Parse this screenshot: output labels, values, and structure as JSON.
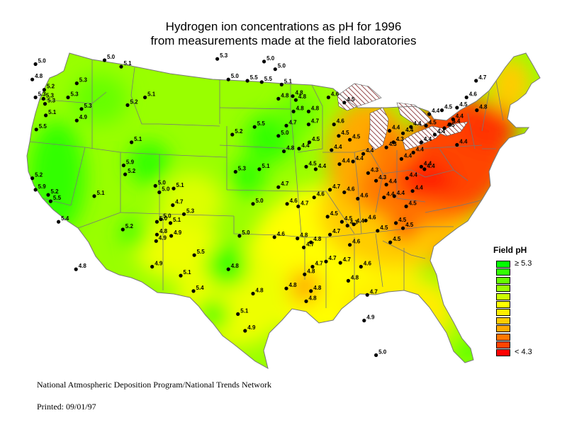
{
  "title": {
    "line1": "Hydrogen ion concentrations as pH for 1996",
    "line2": "from measurements made at the field laboratories"
  },
  "legend": {
    "title": "Field pH",
    "items": [
      {
        "color": "#00ff00",
        "label": "≥ 5.3"
      },
      {
        "color": "#33ff00",
        "label": ""
      },
      {
        "color": "#66ff00",
        "label": ""
      },
      {
        "color": "#99ff00",
        "label": ""
      },
      {
        "color": "#ccff00",
        "label": ""
      },
      {
        "color": "#ffff00",
        "label": ""
      },
      {
        "color": "#ffee00",
        "label": ""
      },
      {
        "color": "#ffcc00",
        "label": ""
      },
      {
        "color": "#ffaa00",
        "label": ""
      },
      {
        "color": "#ff7700",
        "label": ""
      },
      {
        "color": "#ff4400",
        "label": ""
      },
      {
        "color": "#ff0000",
        "label": "< 4.3"
      }
    ]
  },
  "credit": "National Atmospheric Deposition Program/National Trends Network",
  "printed": "Printed: 09/01/97",
  "sites": [
    {
      "lon": -123.6,
      "lat": 48.2,
      "ph": "5.0"
    },
    {
      "lon": -124.0,
      "lat": 47.0,
      "ph": "4.8"
    },
    {
      "lon": -122.5,
      "lat": 46.2,
      "ph": "5.2"
    },
    {
      "lon": -123.6,
      "lat": 45.6,
      "ph": "5.3"
    },
    {
      "lon": -122.6,
      "lat": 45.5,
      "ph": "5.3"
    },
    {
      "lon": -122.4,
      "lat": 45.1,
      "ph": "5.3"
    },
    {
      "lon": -122.3,
      "lat": 44.2,
      "ph": "5.1"
    },
    {
      "lon": -123.5,
      "lat": 43.1,
      "ph": "5.5"
    },
    {
      "lon": -118.4,
      "lat": 46.7,
      "ph": "5.3"
    },
    {
      "lon": -119.5,
      "lat": 45.6,
      "ph": "5.3"
    },
    {
      "lon": -117.8,
      "lat": 44.7,
      "ph": "5.3"
    },
    {
      "lon": -118.4,
      "lat": 43.8,
      "ph": "4.9"
    },
    {
      "lon": -114.9,
      "lat": 48.5,
      "ph": "5.0"
    },
    {
      "lon": -112.8,
      "lat": 48.0,
      "ph": "5.1"
    },
    {
      "lon": -112.0,
      "lat": 45.0,
      "ph": "5.2"
    },
    {
      "lon": -109.8,
      "lat": 45.6,
      "ph": "5.1"
    },
    {
      "lon": -111.5,
      "lat": 42.1,
      "ph": "5.1"
    },
    {
      "lon": -112.5,
      "lat": 40.3,
      "ph": "5.9"
    },
    {
      "lon": -112.3,
      "lat": 39.6,
      "ph": "5.2"
    },
    {
      "lon": -124.0,
      "lat": 39.3,
      "ph": "5.2"
    },
    {
      "lon": -123.6,
      "lat": 38.4,
      "ph": "5.9"
    },
    {
      "lon": -122.0,
      "lat": 38.0,
      "ph": "5.2"
    },
    {
      "lon": -121.7,
      "lat": 37.5,
      "ph": "5.5"
    },
    {
      "lon": -120.7,
      "lat": 35.9,
      "ph": "5.4"
    },
    {
      "lon": -116.2,
      "lat": 37.9,
      "ph": "5.1"
    },
    {
      "lon": -112.6,
      "lat": 35.3,
      "ph": "5.2"
    },
    {
      "lon": -118.5,
      "lat": 32.2,
      "ph": "4.8"
    },
    {
      "lon": -108.5,
      "lat": 38.7,
      "ph": "5.0"
    },
    {
      "lon": -106.2,
      "lat": 38.5,
      "ph": "5.1"
    },
    {
      "lon": -108.0,
      "lat": 38.2,
      "ph": "5.0"
    },
    {
      "lon": -106.3,
      "lat": 37.2,
      "ph": "4.7"
    },
    {
      "lon": -104.9,
      "lat": 36.5,
      "ph": "5.3"
    },
    {
      "lon": -107.8,
      "lat": 36.1,
      "ph": "5.0"
    },
    {
      "lon": -108.3,
      "lat": 35.9,
      "ph": "5.0"
    },
    {
      "lon": -106.6,
      "lat": 35.8,
      "ph": "5.1"
    },
    {
      "lon": -108.3,
      "lat": 34.9,
      "ph": "4.8"
    },
    {
      "lon": -106.5,
      "lat": 34.8,
      "ph": "4.9"
    },
    {
      "lon": -108.4,
      "lat": 34.4,
      "ph": "4.9"
    },
    {
      "lon": -108.9,
      "lat": 32.4,
      "ph": "4.9"
    },
    {
      "lon": -103.6,
      "lat": 33.3,
      "ph": "5.5"
    },
    {
      "lon": -105.3,
      "lat": 31.7,
      "ph": "5.1"
    },
    {
      "lon": -103.7,
      "lat": 30.5,
      "ph": "5.4"
    },
    {
      "lon": -100.7,
      "lat": 48.6,
      "ph": "5.3"
    },
    {
      "lon": -99.3,
      "lat": 47.0,
      "ph": "5.0"
    },
    {
      "lon": -96.9,
      "lat": 46.9,
      "ph": "5.5"
    },
    {
      "lon": -95.1,
      "lat": 46.8,
      "ph": "5.5"
    },
    {
      "lon": -98.8,
      "lat": 42.7,
      "ph": "5.2"
    },
    {
      "lon": -96.0,
      "lat": 43.3,
      "ph": "5.5"
    },
    {
      "lon": -98.4,
      "lat": 39.8,
      "ph": "5.3"
    },
    {
      "lon": -95.4,
      "lat": 40.0,
      "ph": "5.1"
    },
    {
      "lon": -96.2,
      "lat": 37.3,
      "ph": "5.0"
    },
    {
      "lon": -97.9,
      "lat": 34.8,
      "ph": "5.0"
    },
    {
      "lon": -99.3,
      "lat": 32.2,
      "ph": "4.8"
    },
    {
      "lon": -96.2,
      "lat": 30.3,
      "ph": "4.8"
    },
    {
      "lon": -98.1,
      "lat": 28.7,
      "ph": "5.1"
    },
    {
      "lon": -97.2,
      "lat": 27.4,
      "ph": "4.9"
    },
    {
      "lon": -94.8,
      "lat": 48.4,
      "ph": "5.0"
    },
    {
      "lon": -93.4,
      "lat": 47.8,
      "ph": "5.0"
    },
    {
      "lon": -92.6,
      "lat": 46.6,
      "ph": "5.1"
    },
    {
      "lon": -93.0,
      "lat": 45.5,
      "ph": "4.8"
    },
    {
      "lon": -91.2,
      "lat": 45.7,
      "ph": "4.8"
    },
    {
      "lon": -90.8,
      "lat": 45.4,
      "ph": "4.8"
    },
    {
      "lon": -91.1,
      "lat": 44.5,
      "ph": "4.8"
    },
    {
      "lon": -92.0,
      "lat": 43.4,
      "ph": "4.7"
    },
    {
      "lon": -93.0,
      "lat": 42.6,
      "ph": "5.0"
    },
    {
      "lon": -92.3,
      "lat": 41.4,
      "ph": "4.8"
    },
    {
      "lon": -93.0,
      "lat": 38.6,
      "ph": "4.7"
    },
    {
      "lon": -91.9,
      "lat": 37.3,
      "ph": "4.6"
    },
    {
      "lon": -90.5,
      "lat": 37.1,
      "ph": "4.7"
    },
    {
      "lon": -93.5,
      "lat": 34.7,
      "ph": "4.6"
    },
    {
      "lon": -90.6,
      "lat": 34.6,
      "ph": "4.8"
    },
    {
      "lon": -89.8,
      "lat": 33.9,
      "ph": "4.7"
    },
    {
      "lon": -88.9,
      "lat": 34.3,
      "ph": "4.8"
    },
    {
      "lon": -88.7,
      "lat": 32.4,
      "ph": "4.7"
    },
    {
      "lon": -89.7,
      "lat": 31.8,
      "ph": "4.8"
    },
    {
      "lon": -92.0,
      "lat": 30.7,
      "ph": "4.8"
    },
    {
      "lon": -88.9,
      "lat": 30.5,
      "ph": "4.8"
    },
    {
      "lon": -89.5,
      "lat": 29.7,
      "ph": "4.8"
    },
    {
      "lon": -87.0,
      "lat": 32.8,
      "ph": "4.7"
    },
    {
      "lon": -86.5,
      "lat": 34.9,
      "ph": "4.7"
    },
    {
      "lon": -85.2,
      "lat": 32.7,
      "ph": "4.7"
    },
    {
      "lon": -84.0,
      "lat": 34.1,
      "ph": "4.6"
    },
    {
      "lon": -82.6,
      "lat": 32.4,
      "ph": "4.6"
    },
    {
      "lon": -84.2,
      "lat": 31.3,
      "ph": "4.8"
    },
    {
      "lon": -81.8,
      "lat": 30.2,
      "ph": "4.7"
    },
    {
      "lon": -82.2,
      "lat": 28.2,
      "ph": "4.9"
    },
    {
      "lon": -80.7,
      "lat": 25.5,
      "ph": "5.0"
    },
    {
      "lon": -80.5,
      "lat": 35.2,
      "ph": "4.5"
    },
    {
      "lon": -82.0,
      "lat": 36.0,
      "ph": "4.6"
    },
    {
      "lon": -78.2,
      "lat": 35.8,
      "ph": "4.5"
    },
    {
      "lon": -77.3,
      "lat": 35.4,
      "ph": "4.5"
    },
    {
      "lon": -78.9,
      "lat": 34.3,
      "ph": "4.5"
    },
    {
      "lon": -84.3,
      "lat": 35.6,
      "ph": "4.3"
    },
    {
      "lon": -83.5,
      "lat": 35.7,
      "ph": "4.4"
    },
    {
      "lon": -85.0,
      "lat": 35.9,
      "ph": "4.5"
    },
    {
      "lon": -86.8,
      "lat": 36.3,
      "ph": "4.5"
    },
    {
      "lon": -88.5,
      "lat": 37.8,
      "ph": "4.6"
    },
    {
      "lon": -86.5,
      "lat": 38.4,
      "ph": "4.7"
    },
    {
      "lon": -84.7,
      "lat": 38.2,
      "ph": "4.6"
    },
    {
      "lon": -83.0,
      "lat": 37.7,
      "ph": "4.6"
    },
    {
      "lon": -89.5,
      "lat": 40.2,
      "ph": "4.5"
    },
    {
      "lon": -88.3,
      "lat": 40.0,
      "ph": "4.4"
    },
    {
      "lon": -90.4,
      "lat": 41.6,
      "ph": "4.4"
    },
    {
      "lon": -89.1,
      "lat": 42.1,
      "ph": "4.5"
    },
    {
      "lon": -89.2,
      "lat": 43.5,
      "ph": "4.7"
    },
    {
      "lon": -89.2,
      "lat": 44.5,
      "ph": "4.8"
    },
    {
      "lon": -86.7,
      "lat": 45.6,
      "ph": "4.6"
    },
    {
      "lon": -84.7,
      "lat": 45.2,
      "ph": "4.5"
    },
    {
      "lon": -86.0,
      "lat": 43.5,
      "ph": "4.6"
    },
    {
      "lon": -85.4,
      "lat": 42.6,
      "ph": "4.5"
    },
    {
      "lon": -84.0,
      "lat": 42.3,
      "ph": "4.5"
    },
    {
      "lon": -86.3,
      "lat": 41.5,
      "ph": "4.4"
    },
    {
      "lon": -85.3,
      "lat": 40.4,
      "ph": "4.4"
    },
    {
      "lon": -83.6,
      "lat": 40.6,
      "ph": "4.4"
    },
    {
      "lon": -82.3,
      "lat": 41.2,
      "ph": "4.4"
    },
    {
      "lon": -81.7,
      "lat": 39.7,
      "ph": "4.3"
    },
    {
      "lon": -80.7,
      "lat": 39.1,
      "ph": "4.3"
    },
    {
      "lon": -79.7,
      "lat": 37.8,
      "ph": "4.4"
    },
    {
      "lon": -78.4,
      "lat": 37.9,
      "ph": "4.4"
    },
    {
      "lon": -79.4,
      "lat": 38.8,
      "ph": "4.4"
    },
    {
      "lon": -76.9,
      "lat": 37.1,
      "ph": "4.5"
    },
    {
      "lon": -76.1,
      "lat": 38.3,
      "ph": "4.4"
    },
    {
      "lon": -76.8,
      "lat": 39.3,
      "ph": "4.4"
    },
    {
      "lon": -79.4,
      "lat": 41.7,
      "ph": "4.3"
    },
    {
      "lon": -78.5,
      "lat": 42.1,
      "ph": "4.3"
    },
    {
      "lon": -77.5,
      "lat": 40.8,
      "ph": "4.4"
    },
    {
      "lon": -76.0,
      "lat": 41.3,
      "ph": "4.4"
    },
    {
      "lon": -75.0,
      "lat": 40.2,
      "ph": "4.4"
    },
    {
      "lon": -74.6,
      "lat": 40.0,
      "ph": "4.4"
    },
    {
      "lon": -79.0,
      "lat": 43.0,
      "ph": "4.4"
    },
    {
      "lon": -77.3,
      "lat": 42.8,
      "ph": "4.4"
    },
    {
      "lon": -76.3,
      "lat": 43.3,
      "ph": "4.4"
    },
    {
      "lon": -75.0,
      "lat": 42.1,
      "ph": "4.4"
    },
    {
      "lon": -74.4,
      "lat": 43.4,
      "ph": "4.5"
    },
    {
      "lon": -74.0,
      "lat": 44.3,
      "ph": "4.4"
    },
    {
      "lon": -73.3,
      "lat": 42.7,
      "ph": "4.4"
    },
    {
      "lon": -72.1,
      "lat": 43.2,
      "ph": "4.5"
    },
    {
      "lon": -71.4,
      "lat": 43.5,
      "ph": "4.4"
    },
    {
      "lon": -72.4,
      "lat": 44.6,
      "ph": "4.5"
    },
    {
      "lon": -70.5,
      "lat": 41.9,
      "ph": "4.4"
    },
    {
      "lon": -71.0,
      "lat": 43.9,
      "ph": "4.4"
    },
    {
      "lon": -70.5,
      "lat": 44.8,
      "ph": "4.5"
    },
    {
      "lon": -69.3,
      "lat": 45.6,
      "ph": "4.6"
    },
    {
      "lon": -68.0,
      "lat": 44.6,
      "ph": "4.8"
    },
    {
      "lon": -68.1,
      "lat": 46.9,
      "ph": "4.7"
    }
  ]
}
